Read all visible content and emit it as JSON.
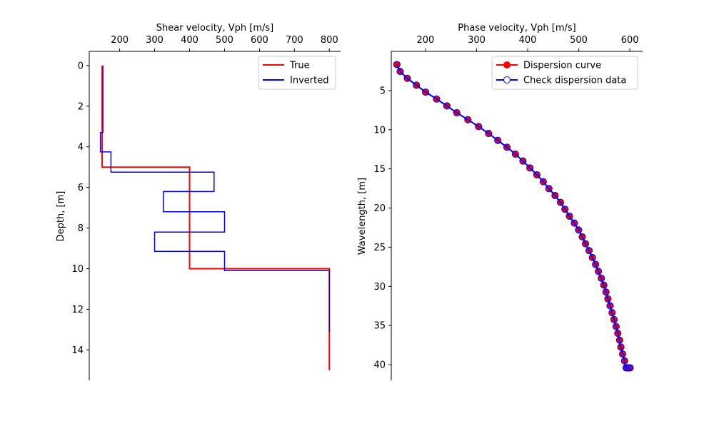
{
  "chart_data": [
    {
      "type": "line",
      "xlabel": "Shear velocity, Vph [m/s]",
      "ylabel": "Depth, [m]",
      "xlim": [
        113,
        832
      ],
      "ylim": [
        15.5,
        -0.7
      ],
      "y_inverted": true,
      "x_axis_position": "top",
      "grid": false,
      "legend_position": "top-right",
      "xticks": [
        200,
        300,
        400,
        500,
        600,
        700,
        800
      ],
      "yticks": [
        0,
        2,
        4,
        6,
        8,
        10,
        12,
        14
      ],
      "series": [
        {
          "name": "True",
          "color": "#ff0000",
          "x": [
            150,
            150,
            400,
            400,
            800,
            800
          ],
          "y": [
            0,
            5,
            5,
            10,
            10,
            15
          ]
        },
        {
          "name": "Inverted",
          "color": "#0000ff",
          "x": [
            152,
            152,
            145,
            145,
            175,
            175,
            470,
            470,
            325,
            325,
            500,
            500,
            300,
            300,
            500,
            500,
            800,
            800
          ],
          "y": [
            0,
            3.3,
            3.3,
            4.25,
            4.25,
            5.25,
            5.25,
            6.2,
            6.2,
            7.2,
            7.2,
            8.2,
            8.2,
            9.15,
            9.15,
            10.1,
            10.1,
            13.1
          ]
        }
      ]
    },
    {
      "type": "line",
      "xlabel": "Phase velocity, Vph [m/s]",
      "ylabel": "Wavelength, [m]",
      "xlim": [
        133,
        625
      ],
      "ylim": [
        42,
        0
      ],
      "y_inverted": true,
      "x_axis_position": "top",
      "grid": false,
      "legend_position": "top-right",
      "xticks": [
        200,
        300,
        400,
        500,
        600
      ],
      "yticks": [
        5,
        10,
        15,
        20,
        25,
        30,
        35,
        40
      ],
      "series": [
        {
          "name": "Dispersion curve",
          "color": "#ff0000",
          "marker": "filled-circle",
          "x": [
            144.0,
            150.4,
            164.4,
            182.3,
            200.2,
            221.7,
            241.9,
            261.3,
            283.0,
            304.0,
            323.5,
            341.6,
            359.5,
            376.0,
            390.7,
            404.5,
            418.1,
            430.6,
            441.6,
            453.6,
            464.3,
            473.0,
            481.8,
            491.4,
            499.7,
            506.9,
            513.3,
            520.2,
            526.8,
            533.0,
            538.5,
            544.2,
            549.1,
            553.3,
            557.1,
            561.3,
            565.3,
            569.1,
            573.1,
            576.5,
            580.0,
            582.5,
            585.9,
            589.7,
            592.6,
            595.2,
            598.2,
            600.5
          ],
          "y": [
            1.68,
            2.56,
            3.44,
            4.32,
            5.2,
            6.08,
            6.96,
            7.84,
            8.72,
            9.6,
            10.48,
            11.36,
            12.24,
            13.12,
            14.0,
            14.88,
            15.76,
            16.64,
            17.52,
            18.4,
            19.28,
            20.16,
            21.04,
            21.92,
            22.8,
            23.68,
            24.56,
            25.44,
            26.32,
            27.2,
            28.08,
            28.96,
            29.84,
            30.72,
            31.6,
            32.48,
            33.36,
            34.24,
            35.12,
            36.0,
            36.88,
            37.76,
            38.64,
            39.52,
            40.4,
            40.4,
            40.4,
            40.4
          ]
        },
        {
          "name": "Check dispersion data",
          "color": "#0000ff",
          "marker": "open-circle",
          "x": [
            144.0,
            150.4,
            164.4,
            182.3,
            200.2,
            221.7,
            241.9,
            261.3,
            283.0,
            304.0,
            323.5,
            341.6,
            359.5,
            376.0,
            390.7,
            404.5,
            418.1,
            430.6,
            441.6,
            453.6,
            464.3,
            473.0,
            481.8,
            491.4,
            499.7,
            506.9,
            513.3,
            520.2,
            526.8,
            533.0,
            538.5,
            544.2,
            549.1,
            553.3,
            557.1,
            561.3,
            565.3,
            569.1,
            573.1,
            576.5,
            580.0,
            582.5,
            585.9,
            589.7,
            592.6,
            595.2,
            598.2,
            600.5
          ],
          "y": [
            1.68,
            2.56,
            3.44,
            4.32,
            5.2,
            6.08,
            6.96,
            7.84,
            8.72,
            9.6,
            10.48,
            11.36,
            12.24,
            13.12,
            14.0,
            14.88,
            15.76,
            16.64,
            17.52,
            18.4,
            19.28,
            20.16,
            21.04,
            21.92,
            22.8,
            23.68,
            24.56,
            25.44,
            26.32,
            27.2,
            28.08,
            28.96,
            29.84,
            30.72,
            31.6,
            32.48,
            33.36,
            34.24,
            35.12,
            36.0,
            36.88,
            37.76,
            38.64,
            39.52,
            40.4,
            40.4,
            40.4,
            40.4
          ]
        }
      ]
    }
  ]
}
